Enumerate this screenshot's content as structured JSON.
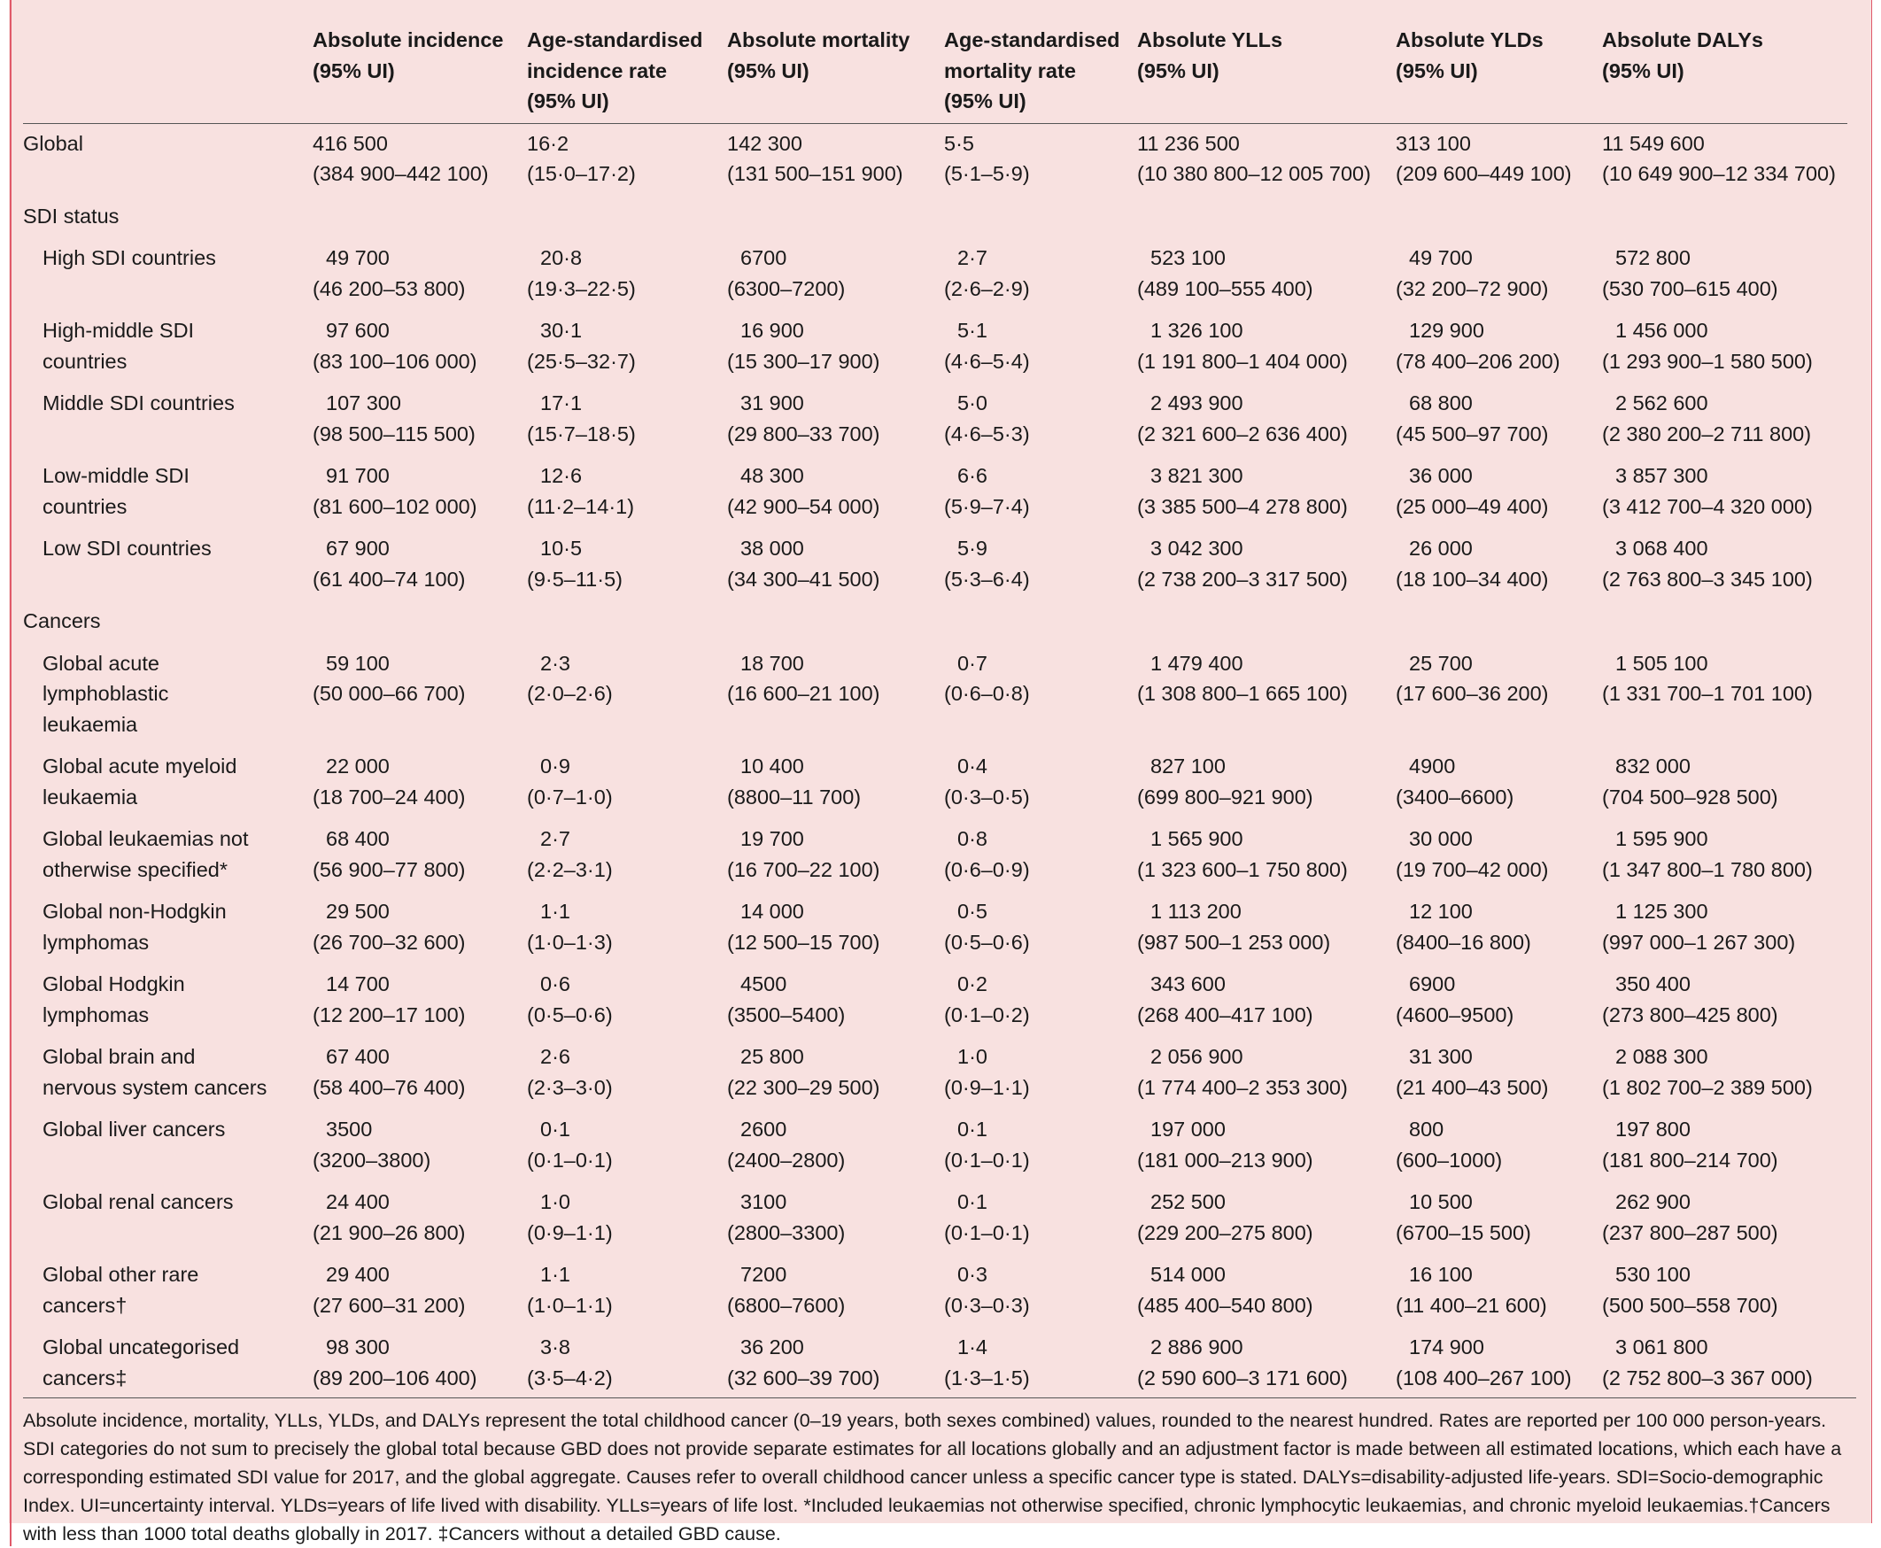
{
  "headers": [
    "",
    "Absolute incidence\n(95% UI)",
    "Age-standardised\nincidence rate\n(95% UI)",
    "Absolute mortality\n(95% UI)",
    "Age-standardised\nmortality rate\n(95% UI)",
    "Absolute YLLs\n(95% UI)",
    "Absolute YLDs\n(95% UI)",
    "Absolute DALYs\n(95% UI)"
  ],
  "rows": [
    {
      "type": "data",
      "label": "Global",
      "sub": false,
      "cells": [
        [
          "416 500",
          "(384 900–442 100)"
        ],
        [
          "16·2",
          "(15·0–17·2)"
        ],
        [
          "142 300",
          "(131 500–151 900)"
        ],
        [
          "5·5",
          "(5·1–5·9)"
        ],
        [
          "11 236 500",
          "(10 380 800–12 005 700)"
        ],
        [
          "313 100",
          "(209 600–449 100)"
        ],
        [
          "11 549 600",
          "(10 649 900–12 334 700)"
        ]
      ]
    },
    {
      "type": "section",
      "label": "SDI status"
    },
    {
      "type": "data",
      "label": "High SDI countries",
      "sub": true,
      "cells": [
        [
          "49 700",
          "(46 200–53 800)"
        ],
        [
          "20·8",
          "(19·3–22·5)"
        ],
        [
          "6700",
          "(6300–7200)"
        ],
        [
          "2·7",
          "(2·6–2·9)"
        ],
        [
          "523 100",
          "(489 100–555 400)"
        ],
        [
          "49 700",
          "(32 200–72 900)"
        ],
        [
          "572 800",
          "(530 700–615 400)"
        ]
      ]
    },
    {
      "type": "data",
      "label": "High-middle SDI\ncountries",
      "sub": true,
      "cells": [
        [
          "97 600",
          "(83 100–106 000)"
        ],
        [
          "30·1",
          "(25·5–32·7)"
        ],
        [
          "16 900",
          "(15 300–17 900)"
        ],
        [
          "5·1",
          "(4·6–5·4)"
        ],
        [
          "1 326 100",
          "(1 191 800–1 404 000)"
        ],
        [
          "129 900",
          "(78 400–206 200)"
        ],
        [
          "1 456 000",
          "(1 293 900–1 580 500)"
        ]
      ]
    },
    {
      "type": "data",
      "label": "Middle SDI countries",
      "sub": true,
      "cells": [
        [
          "107 300",
          "(98 500–115 500)"
        ],
        [
          "17·1",
          "(15·7–18·5)"
        ],
        [
          "31 900",
          "(29 800–33 700)"
        ],
        [
          "5·0",
          "(4·6–5·3)"
        ],
        [
          "2 493 900",
          "(2 321 600–2 636 400)"
        ],
        [
          "68 800",
          "(45 500–97 700)"
        ],
        [
          "2 562 600",
          "(2 380 200–2 711 800)"
        ]
      ]
    },
    {
      "type": "data",
      "label": "Low-middle SDI\ncountries",
      "sub": true,
      "cells": [
        [
          "91 700",
          "(81 600–102 000)"
        ],
        [
          "12·6",
          "(11·2–14·1)"
        ],
        [
          "48 300",
          "(42 900–54 000)"
        ],
        [
          "6·6",
          "(5·9–7·4)"
        ],
        [
          "3 821 300",
          "(3 385 500–4 278 800)"
        ],
        [
          "36 000",
          "(25 000–49 400)"
        ],
        [
          "3 857 300",
          "(3 412 700–4 320 000)"
        ]
      ]
    },
    {
      "type": "data",
      "label": "Low SDI countries",
      "sub": true,
      "cells": [
        [
          "67 900",
          "(61 400–74 100)"
        ],
        [
          "10·5",
          "(9·5–11·5)"
        ],
        [
          "38 000",
          "(34 300–41 500)"
        ],
        [
          "5·9",
          "(5·3–6·4)"
        ],
        [
          "3 042 300",
          "(2 738 200–3 317 500)"
        ],
        [
          "26 000",
          "(18 100–34 400)"
        ],
        [
          "3 068 400",
          "(2 763 800–3 345 100)"
        ]
      ]
    },
    {
      "type": "section",
      "label": "Cancers"
    },
    {
      "type": "data",
      "label": "Global acute\nlymphoblastic\nleukaemia",
      "sub": true,
      "cells": [
        [
          "59 100",
          "(50 000–66 700)"
        ],
        [
          "2·3",
          "(2·0–2·6)"
        ],
        [
          "18 700",
          "(16 600–21 100)"
        ],
        [
          "0·7",
          "(0·6–0·8)"
        ],
        [
          "1 479 400",
          "(1 308 800–1 665 100)"
        ],
        [
          "25 700",
          "(17 600–36 200)"
        ],
        [
          "1 505 100",
          "(1 331 700–1 701 100)"
        ]
      ]
    },
    {
      "type": "data",
      "label": "Global acute myeloid\nleukaemia",
      "sub": true,
      "cells": [
        [
          "22 000",
          "(18 700–24 400)"
        ],
        [
          "0·9",
          "(0·7–1·0)"
        ],
        [
          "10 400",
          "(8800–11 700)"
        ],
        [
          "0·4",
          "(0·3–0·5)"
        ],
        [
          "827 100",
          "(699 800–921 900)"
        ],
        [
          "4900",
          "(3400–6600)"
        ],
        [
          "832 000",
          "(704 500–928 500)"
        ]
      ]
    },
    {
      "type": "data",
      "label": "Global leukaemias not\notherwise specified*",
      "sub": true,
      "cells": [
        [
          "68 400",
          "(56 900–77 800)"
        ],
        [
          "2·7",
          "(2·2–3·1)"
        ],
        [
          "19 700",
          "(16 700–22 100)"
        ],
        [
          "0·8",
          "(0·6–0·9)"
        ],
        [
          "1 565 900",
          "(1 323 600–1 750 800)"
        ],
        [
          "30 000",
          "(19 700–42 000)"
        ],
        [
          "1 595 900",
          "(1 347 800–1 780 800)"
        ]
      ]
    },
    {
      "type": "data",
      "label": "Global non-Hodgkin\nlymphomas",
      "sub": true,
      "cells": [
        [
          "29 500",
          "(26 700–32 600)"
        ],
        [
          "1·1",
          "(1·0–1·3)"
        ],
        [
          "14 000",
          "(12 500–15 700)"
        ],
        [
          "0·5",
          "(0·5–0·6)"
        ],
        [
          "1 113 200",
          "(987 500–1 253 000)"
        ],
        [
          "12 100",
          "(8400–16 800)"
        ],
        [
          "1 125 300",
          "(997 000–1 267 300)"
        ]
      ]
    },
    {
      "type": "data",
      "label": "Global Hodgkin\nlymphomas",
      "sub": true,
      "cells": [
        [
          "14 700",
          "(12 200–17 100)"
        ],
        [
          "0·6",
          "(0·5–0·6)"
        ],
        [
          "4500",
          "(3500–5400)"
        ],
        [
          "0·2",
          "(0·1–0·2)"
        ],
        [
          "343 600",
          "(268 400–417 100)"
        ],
        [
          "6900",
          "(4600–9500)"
        ],
        [
          "350 400",
          "(273 800–425 800)"
        ]
      ]
    },
    {
      "type": "data",
      "label": "Global brain and\nnervous system cancers",
      "sub": true,
      "cells": [
        [
          "67 400",
          "(58 400–76 400)"
        ],
        [
          "2·6",
          "(2·3–3·0)"
        ],
        [
          "25 800",
          "(22 300–29 500)"
        ],
        [
          "1·0",
          "(0·9–1·1)"
        ],
        [
          "2 056 900",
          "(1 774 400–2 353 300)"
        ],
        [
          "31 300",
          "(21 400–43 500)"
        ],
        [
          "2 088 300",
          "(1 802 700–2 389 500)"
        ]
      ]
    },
    {
      "type": "data",
      "label": "Global liver cancers",
      "sub": true,
      "cells": [
        [
          "3500",
          "(3200–3800)"
        ],
        [
          "0·1",
          "(0·1–0·1)"
        ],
        [
          "2600",
          "(2400–2800)"
        ],
        [
          "0·1",
          "(0·1–0·1)"
        ],
        [
          "197 000",
          "(181 000–213 900)"
        ],
        [
          "800",
          "(600–1000)"
        ],
        [
          "197 800",
          "(181 800–214 700)"
        ]
      ]
    },
    {
      "type": "data",
      "label": "Global renal cancers",
      "sub": true,
      "cells": [
        [
          "24 400",
          "(21 900–26 800)"
        ],
        [
          "1·0",
          "(0·9–1·1)"
        ],
        [
          "3100",
          "(2800–3300)"
        ],
        [
          "0·1",
          "(0·1–0·1)"
        ],
        [
          "252 500",
          "(229 200–275 800)"
        ],
        [
          "10 500",
          "(6700–15 500)"
        ],
        [
          "262 900",
          "(237 800–287 500)"
        ]
      ]
    },
    {
      "type": "data",
      "label": "Global other rare\ncancers†",
      "sub": true,
      "cells": [
        [
          "29 400",
          "(27 600–31 200)"
        ],
        [
          "1·1",
          "(1·0–1·1)"
        ],
        [
          "7200",
          "(6800–7600)"
        ],
        [
          "0·3",
          "(0·3–0·3)"
        ],
        [
          "514 000",
          "(485 400–540 800)"
        ],
        [
          "16 100",
          "(11 400–21 600)"
        ],
        [
          "530 100",
          "(500 500–558 700)"
        ]
      ]
    },
    {
      "type": "data",
      "label": "Global uncategorised\ncancers‡",
      "sub": true,
      "cells": [
        [
          "98 300",
          "(89 200–106 400)"
        ],
        [
          "3·8",
          "(3·5–4·2)"
        ],
        [
          "36 200",
          "(32 600–39 700)"
        ],
        [
          "1·4",
          "(1·3–1·5)"
        ],
        [
          "2 886 900",
          "(2 590 600–3 171 600)"
        ],
        [
          "174 900",
          "(108 400–267 100)"
        ],
        [
          "3 061 800",
          "(2 752 800–3 367 000)"
        ]
      ]
    }
  ],
  "footnote": "Absolute incidence, mortality, YLLs, YLDs, and DALYs represent the total childhood cancer (0–19 years, both sexes combined) values, rounded to the nearest hundred. Rates are reported per 100 000 person-years. SDI categories do not sum to precisely the global total because GBD does not provide separate estimates for all locations globally and an adjustment factor is made between all estimated locations, which each have a corresponding estimated SDI value for 2017, and the global aggregate. Causes refer to overall childhood cancer unless a specific cancer type is stated. DALYs=disability-adjusted life-years. SDI=Socio-demographic Index. UI=uncertainty interval. YLDs=years of life lived with disability. YLLs=years of life lost. *Included leukaemias not otherwise specified, chronic lymphocytic leukaemias, and chronic myeloid leukaemias.†Cancers with less than 1000 total deaths globally in 2017. ‡Cancers without a detailed GBD cause."
}
